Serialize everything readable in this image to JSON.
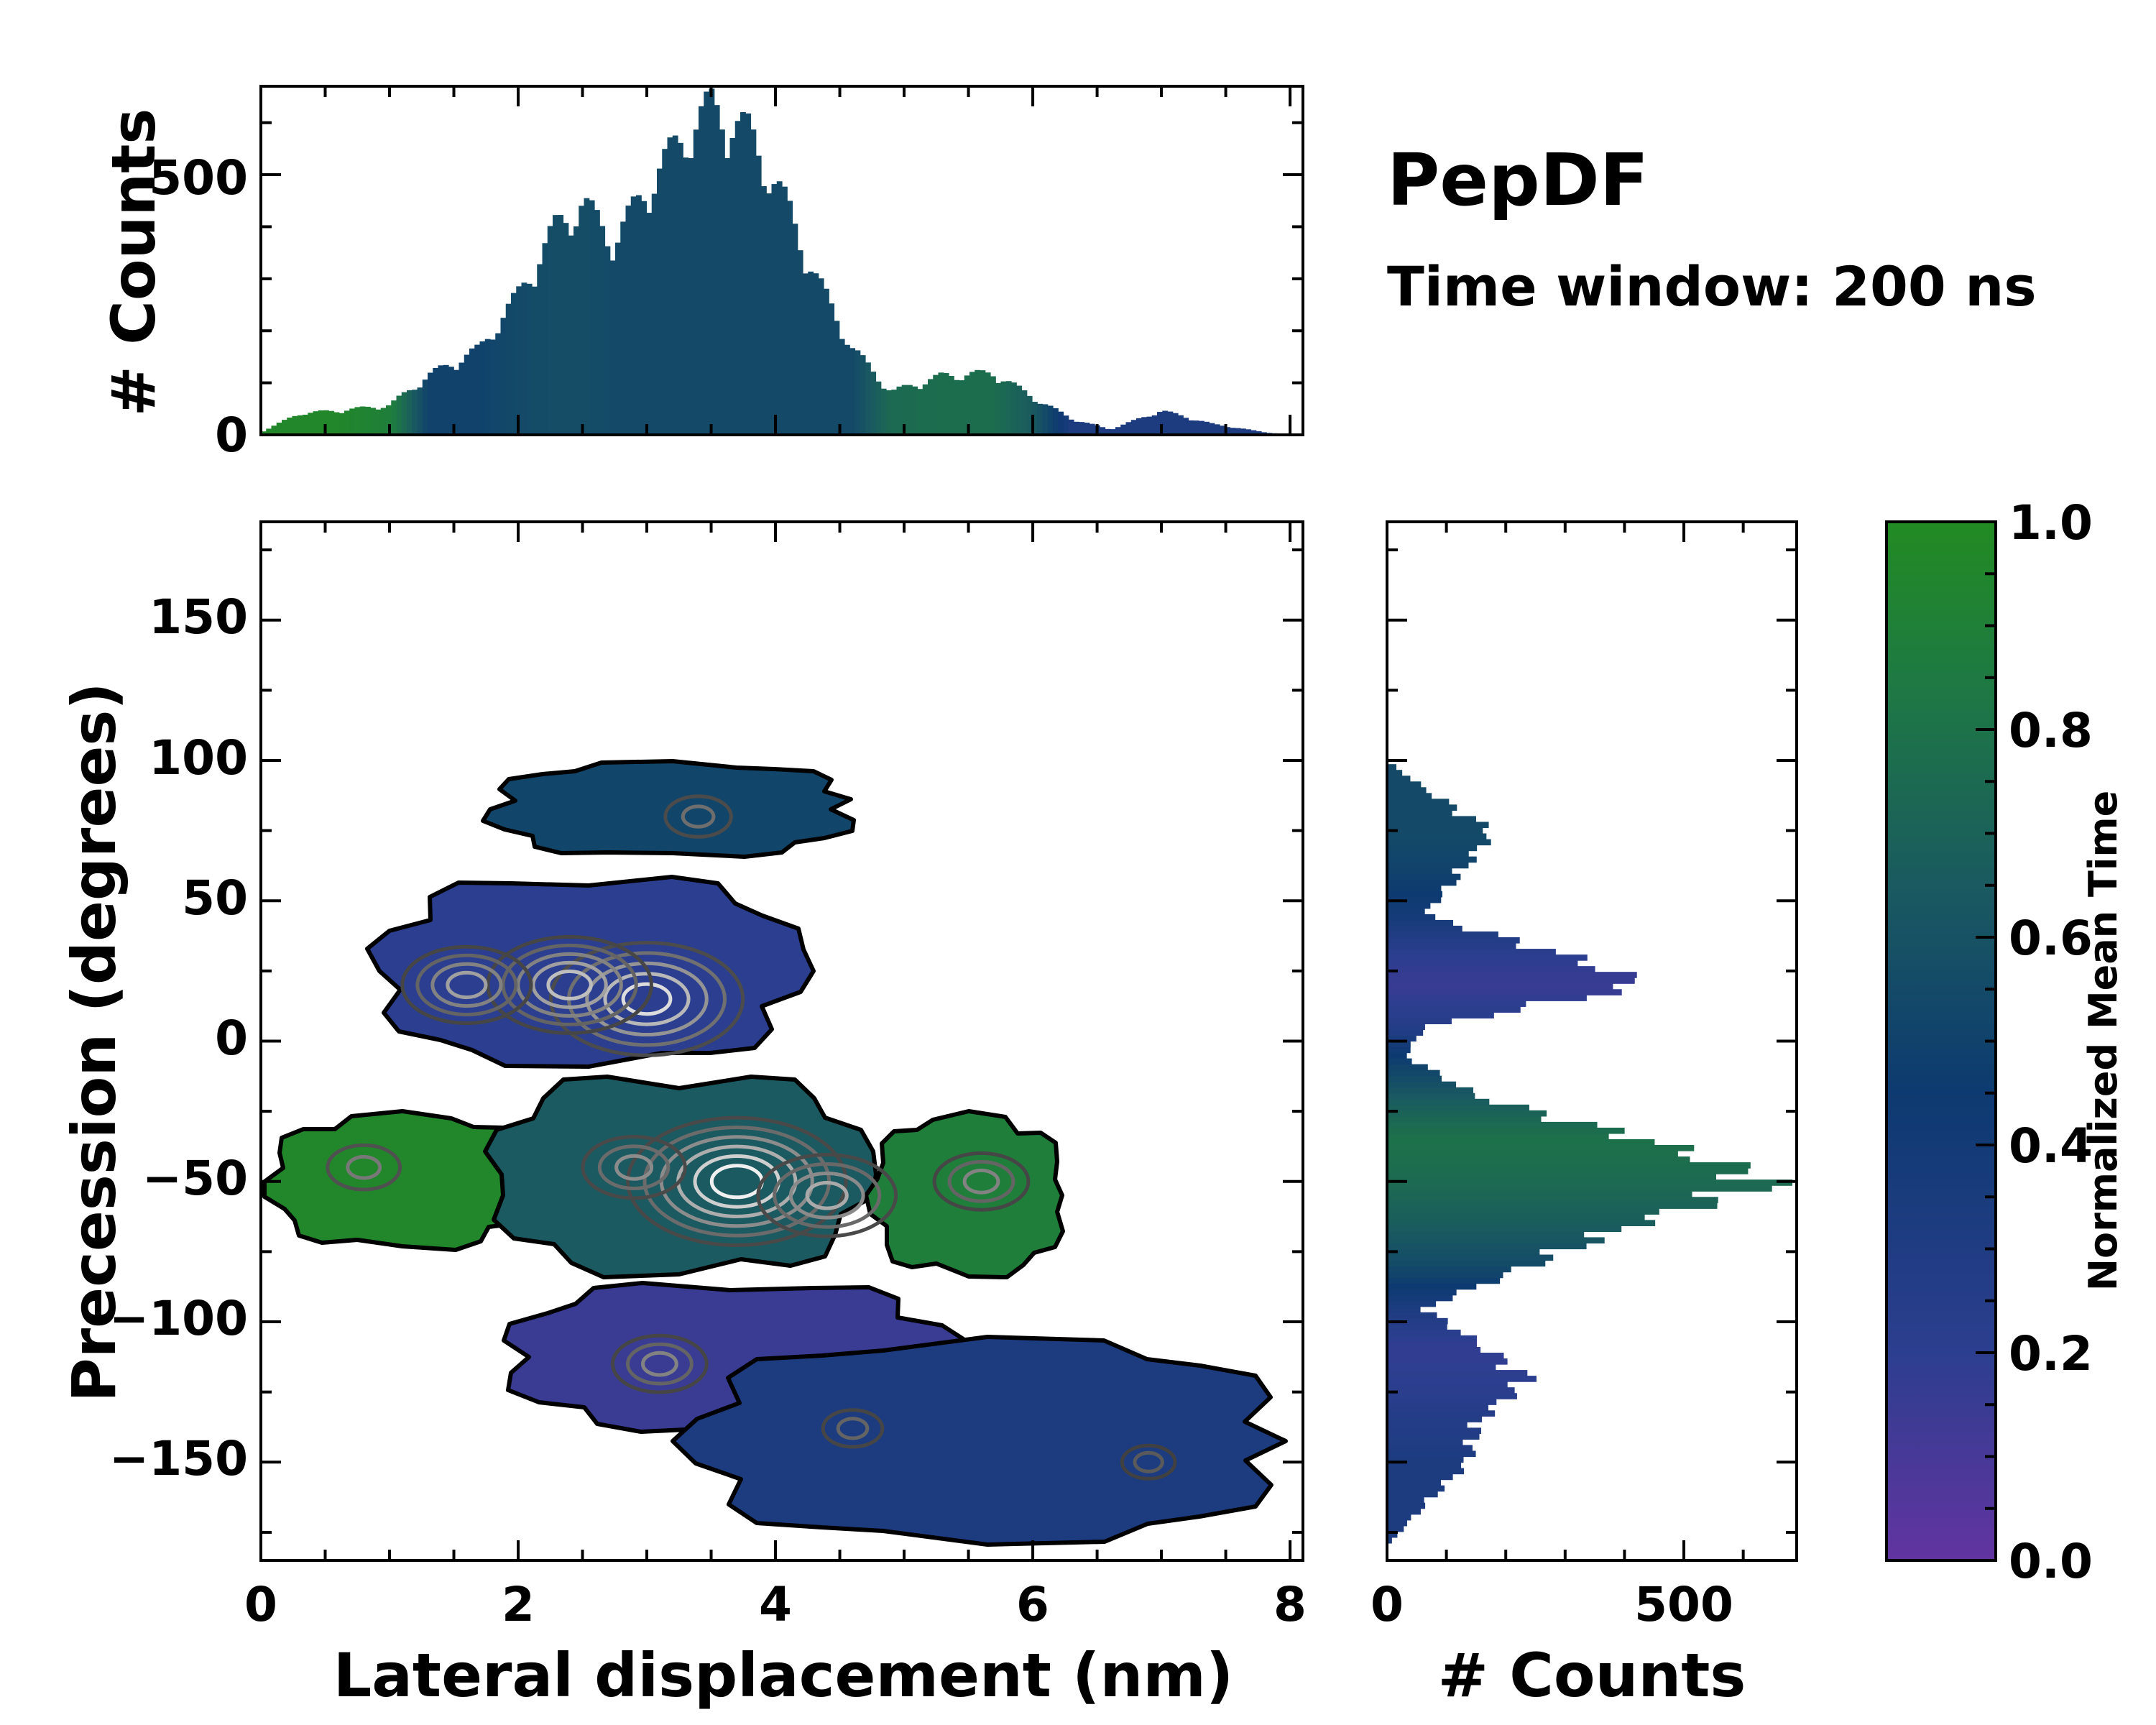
{
  "chart_data": {
    "type": "heatmap",
    "title": "PepDF",
    "subtitle": "Time window: 200 ns",
    "main": {
      "xlabel": "Lateral displacement (nm)",
      "ylabel": "Precession (degrees)",
      "xlim": [
        0,
        8.1
      ],
      "ylim": [
        -185,
        185
      ],
      "xticks": [
        "0",
        "2",
        "4",
        "6",
        "8"
      ],
      "xtick_values": [
        0,
        2,
        4,
        6,
        8
      ],
      "yticks": [
        "150",
        "100",
        "50",
        "0",
        "−50",
        "−100",
        "−150"
      ],
      "ytick_values": [
        150,
        100,
        50,
        0,
        -50,
        -100,
        -150
      ],
      "regions": [
        {
          "name": "upper-right lobe",
          "x": [
            1.7,
            4.7
          ],
          "y": [
            65,
            100
          ],
          "mean_time": 0.47
        },
        {
          "name": "upper lobe",
          "x": [
            0.8,
            4.3
          ],
          "y": [
            -10,
            60
          ],
          "mean_time": 0.2
        },
        {
          "name": "left arm",
          "x": [
            0,
            2.2
          ],
          "y": [
            -75,
            -25
          ],
          "mean_time": 0.95
        },
        {
          "name": "central lobe",
          "x": [
            1.7,
            4.8
          ],
          "y": [
            -85,
            -10
          ],
          "mean_time": 0.6
        },
        {
          "name": "right arm",
          "x": [
            4.7,
            6.3
          ],
          "y": [
            -85,
            -25
          ],
          "mean_time": 0.85
        },
        {
          "name": "lower lobe",
          "x": [
            1.8,
            5.5
          ],
          "y": [
            -140,
            -85
          ],
          "mean_time": 0.15
        },
        {
          "name": "lower-right arm",
          "x": [
            3.2,
            8.1
          ],
          "y": [
            -180,
            -105
          ],
          "mean_time": 0.3
        }
      ],
      "density_peaks": [
        {
          "x": 3.7,
          "y": -50,
          "level": 1.0
        },
        {
          "x": 3.0,
          "y": 15,
          "level": 0.9
        },
        {
          "x": 2.4,
          "y": 20,
          "level": 0.75
        },
        {
          "x": 1.6,
          "y": 20,
          "level": 0.6
        },
        {
          "x": 4.4,
          "y": -55,
          "level": 0.65
        },
        {
          "x": 2.9,
          "y": -45,
          "level": 0.5
        },
        {
          "x": 3.4,
          "y": 80,
          "level": 0.35
        },
        {
          "x": 3.1,
          "y": -115,
          "level": 0.45
        },
        {
          "x": 5.6,
          "y": -50,
          "level": 0.45
        },
        {
          "x": 0.8,
          "y": -45,
          "level": 0.4
        },
        {
          "x": 6.9,
          "y": -150,
          "level": 0.25
        },
        {
          "x": 4.6,
          "y": -138,
          "level": 0.3
        }
      ]
    },
    "top_histogram": {
      "ylabel": "# Counts",
      "yticks": [
        "0",
        "500"
      ],
      "ytick_values": [
        0,
        500
      ],
      "ylim": [
        0,
        670
      ],
      "xlim": [
        0,
        8.1
      ],
      "peaks": [
        {
          "x": 0.0,
          "count": 5,
          "mean_time": 0.95
        },
        {
          "x": 0.3,
          "count": 40,
          "mean_time": 0.95
        },
        {
          "x": 0.6,
          "count": 45,
          "mean_time": 0.95
        },
        {
          "x": 1.0,
          "count": 55,
          "mean_time": 0.85
        },
        {
          "x": 1.3,
          "count": 110,
          "mean_time": 0.45
        },
        {
          "x": 1.7,
          "count": 160,
          "mean_time": 0.45
        },
        {
          "x": 2.0,
          "count": 260,
          "mean_time": 0.5
        },
        {
          "x": 2.3,
          "count": 390,
          "mean_time": 0.52
        },
        {
          "x": 2.5,
          "count": 430,
          "mean_time": 0.52
        },
        {
          "x": 2.75,
          "count": 360,
          "mean_time": 0.5
        },
        {
          "x": 3.0,
          "count": 460,
          "mean_time": 0.5
        },
        {
          "x": 3.3,
          "count": 560,
          "mean_time": 0.5
        },
        {
          "x": 3.5,
          "count": 610,
          "mean_time": 0.5
        },
        {
          "x": 3.8,
          "count": 560,
          "mean_time": 0.5
        },
        {
          "x": 4.1,
          "count": 420,
          "mean_time": 0.5
        },
        {
          "x": 4.3,
          "count": 300,
          "mean_time": 0.5
        },
        {
          "x": 4.6,
          "count": 160,
          "mean_time": 0.5
        },
        {
          "x": 4.9,
          "count": 80,
          "mean_time": 0.7
        },
        {
          "x": 5.3,
          "count": 110,
          "mean_time": 0.72
        },
        {
          "x": 5.7,
          "count": 115,
          "mean_time": 0.72
        },
        {
          "x": 6.0,
          "count": 70,
          "mean_time": 0.6
        },
        {
          "x": 6.3,
          "count": 30,
          "mean_time": 0.3
        },
        {
          "x": 6.6,
          "count": 10,
          "mean_time": 0.3
        },
        {
          "x": 7.0,
          "count": 45,
          "mean_time": 0.3
        },
        {
          "x": 7.4,
          "count": 20,
          "mean_time": 0.3
        },
        {
          "x": 7.8,
          "count": 5,
          "mean_time": 0.3
        },
        {
          "x": 8.0,
          "count": 0,
          "mean_time": 0.3
        }
      ]
    },
    "right_histogram": {
      "xlabel": "# Counts",
      "xticks": [
        "0",
        "500"
      ],
      "xtick_values": [
        0,
        500
      ],
      "xlim": [
        0,
        690
      ],
      "ylim": [
        -185,
        185
      ],
      "peaks": [
        {
          "y": -180,
          "count": 0,
          "mean_time": 0.3
        },
        {
          "y": -170,
          "count": 40,
          "mean_time": 0.3
        },
        {
          "y": -150,
          "count": 130,
          "mean_time": 0.3
        },
        {
          "y": -135,
          "count": 150,
          "mean_time": 0.25
        },
        {
          "y": -120,
          "count": 230,
          "mean_time": 0.2
        },
        {
          "y": -108,
          "count": 150,
          "mean_time": 0.18
        },
        {
          "y": -95,
          "count": 60,
          "mean_time": 0.3
        },
        {
          "y": -80,
          "count": 230,
          "mean_time": 0.5
        },
        {
          "y": -65,
          "count": 400,
          "mean_time": 0.62
        },
        {
          "y": -50,
          "count": 630,
          "mean_time": 0.7
        },
        {
          "y": -35,
          "count": 420,
          "mean_time": 0.75
        },
        {
          "y": -20,
          "count": 150,
          "mean_time": 0.6
        },
        {
          "y": -5,
          "count": 30,
          "mean_time": 0.4
        },
        {
          "y": 5,
          "count": 60,
          "mean_time": 0.25
        },
        {
          "y": 20,
          "count": 420,
          "mean_time": 0.15
        },
        {
          "y": 30,
          "count": 300,
          "mean_time": 0.2
        },
        {
          "y": 45,
          "count": 60,
          "mean_time": 0.35
        },
        {
          "y": 60,
          "count": 120,
          "mean_time": 0.45
        },
        {
          "y": 75,
          "count": 170,
          "mean_time": 0.5
        },
        {
          "y": 90,
          "count": 60,
          "mean_time": 0.5
        },
        {
          "y": 100,
          "count": 0,
          "mean_time": 0.5
        }
      ]
    },
    "colorbar": {
      "label": "Normalized Mean Time",
      "range": [
        0,
        1
      ],
      "ticks": [
        "0.0",
        "0.2",
        "0.4",
        "0.6",
        "0.8",
        "1.0"
      ],
      "tick_values": [
        0,
        0.2,
        0.4,
        0.6,
        0.8,
        1.0
      ],
      "colors": [
        "#6234a0",
        "#2c3e8f",
        "#0d3a70",
        "#1a5a60",
        "#1e7a42",
        "#228b22"
      ]
    }
  }
}
